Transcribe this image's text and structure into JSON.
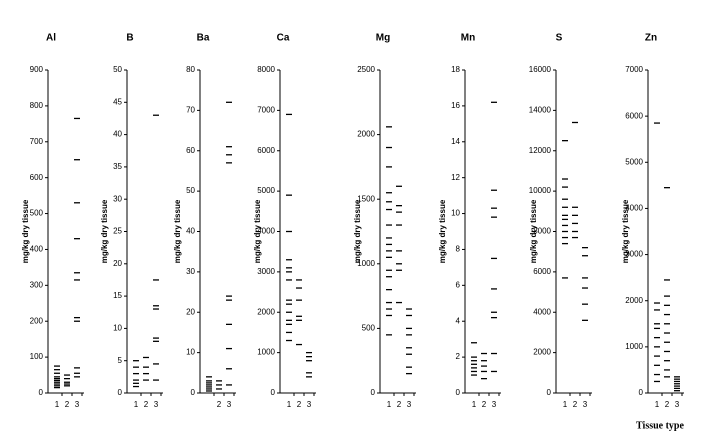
{
  "chart_data": [
    {
      "type": "strip",
      "title": "Al",
      "ylabel": "mg/kg dry tissue",
      "categories": [
        "1",
        "2",
        "3"
      ],
      "ylim": [
        0,
        900
      ],
      "yticks": [
        0,
        100,
        200,
        300,
        400,
        500,
        600,
        700,
        800,
        900
      ],
      "color": "#000000",
      "values": [
        [
          75,
          65,
          55,
          45,
          40,
          35,
          30,
          25,
          20,
          15
        ],
        [
          50,
          40,
          30,
          25,
          20
        ],
        [
          765,
          650,
          530,
          430,
          335,
          315,
          210,
          200,
          70,
          55,
          45
        ]
      ]
    },
    {
      "type": "strip",
      "title": "B",
      "ylabel": "mg/kg dry tissue",
      "categories": [
        "1",
        "2",
        "3"
      ],
      "ylim": [
        0,
        50
      ],
      "yticks": [
        0,
        5,
        10,
        15,
        20,
        25,
        30,
        35,
        40,
        45,
        50
      ],
      "color": "#000000",
      "values": [
        [
          5,
          4,
          3,
          2,
          1.5,
          1
        ],
        [
          5.5,
          4,
          3,
          2
        ],
        [
          43,
          17.5,
          13.5,
          13,
          8.5,
          8,
          4.5,
          2
        ]
      ]
    },
    {
      "type": "strip",
      "title": "Ba",
      "ylabel": "mg/kg dry tissue",
      "categories": [
        null,
        "2",
        "3"
      ],
      "ylim": [
        0,
        80
      ],
      "yticks": [
        0,
        10,
        20,
        30,
        40,
        50,
        60,
        70,
        80
      ],
      "color": "#000000",
      "values": [
        [
          4,
          3,
          2.5,
          2,
          1.5,
          1,
          0.5
        ],
        [
          3,
          2,
          1
        ],
        [
          72,
          61,
          59,
          57,
          24,
          23,
          17,
          11,
          6,
          2
        ]
      ]
    },
    {
      "type": "strip",
      "title": "Ca",
      "ylabel": "mg/kg dry tissue",
      "categories": [
        "1",
        "2",
        "3"
      ],
      "ylim": [
        0,
        8000
      ],
      "yticks": [
        0,
        1000,
        2000,
        3000,
        4000,
        5000,
        6000,
        7000,
        8000
      ],
      "color": "#000000",
      "values": [
        [
          6900,
          4900,
          4000,
          3300,
          3100,
          3000,
          2800,
          2300,
          2200,
          2000,
          1800,
          1700,
          1500,
          1300
        ],
        [
          2800,
          2600,
          2300,
          1900,
          1800,
          1200
        ],
        [
          1000,
          900,
          800,
          500,
          400
        ]
      ]
    },
    {
      "type": "strip",
      "title": "Mg",
      "ylabel": "mg/kg dry tissue",
      "categories": [
        "1",
        "2",
        "3"
      ],
      "ylim": [
        0,
        2500
      ],
      "yticks": [
        0,
        500,
        1000,
        1500,
        2000,
        2500
      ],
      "color": "#000000",
      "values": [
        [
          2060,
          1900,
          1750,
          1550,
          1480,
          1420,
          1300,
          1200,
          1150,
          1100,
          1050,
          950,
          900,
          800,
          700,
          650,
          600,
          450
        ],
        [
          1600,
          1450,
          1400,
          1300,
          1100,
          1000,
          950,
          700
        ],
        [
          650,
          600,
          500,
          450,
          350,
          300,
          200,
          150
        ]
      ]
    },
    {
      "type": "strip",
      "title": "Mn",
      "ylabel": "mg/kg dry tissue",
      "categories": [
        "1",
        "2",
        "3"
      ],
      "ylim": [
        0,
        18
      ],
      "yticks": [
        0,
        2,
        4,
        6,
        8,
        10,
        12,
        14,
        16,
        18
      ],
      "color": "#000000",
      "values": [
        [
          2.8,
          2,
          1.8,
          1.6,
          1.4,
          1.2,
          1
        ],
        [
          2.2,
          1.8,
          1.5,
          1.2,
          0.8
        ],
        [
          16.2,
          11.3,
          10.3,
          9.8,
          7.5,
          5.8,
          4.5,
          4.2,
          2.2,
          1.2
        ]
      ]
    },
    {
      "type": "strip",
      "title": "S",
      "ylabel": "mg/kg dry tissue",
      "categories": [
        "1",
        "2",
        "3"
      ],
      "ylim": [
        0,
        16000
      ],
      "yticks": [
        0,
        2000,
        4000,
        6000,
        8000,
        10000,
        12000,
        14000,
        16000
      ],
      "color": "#000000",
      "values": [
        [
          12500,
          10600,
          10200,
          9600,
          9200,
          8800,
          8600,
          8300,
          8000,
          7700,
          7400,
          5700
        ],
        [
          13400,
          9200,
          8800,
          8400,
          8000,
          7700
        ],
        [
          7200,
          6800,
          5700,
          5200,
          4400,
          3600
        ]
      ]
    },
    {
      "type": "strip",
      "title": "Zn",
      "ylabel": "mg/kg dry tissue",
      "xlabel": "Tissue type",
      "categories": [
        "1",
        "2",
        "3"
      ],
      "ylim": [
        0,
        7000
      ],
      "yticks": [
        0,
        1000,
        2000,
        3000,
        4000,
        5000,
        6000,
        7000
      ],
      "color": "#000000",
      "values": [
        [
          5850,
          1950,
          1800,
          1500,
          1400,
          1200,
          1000,
          800,
          600,
          400,
          250
        ],
        [
          4450,
          2450,
          2100,
          1900,
          1700,
          1500,
          1300,
          1100,
          900,
          700,
          500,
          350
        ],
        [
          350,
          300,
          250,
          200,
          150,
          100,
          50
        ]
      ]
    }
  ]
}
